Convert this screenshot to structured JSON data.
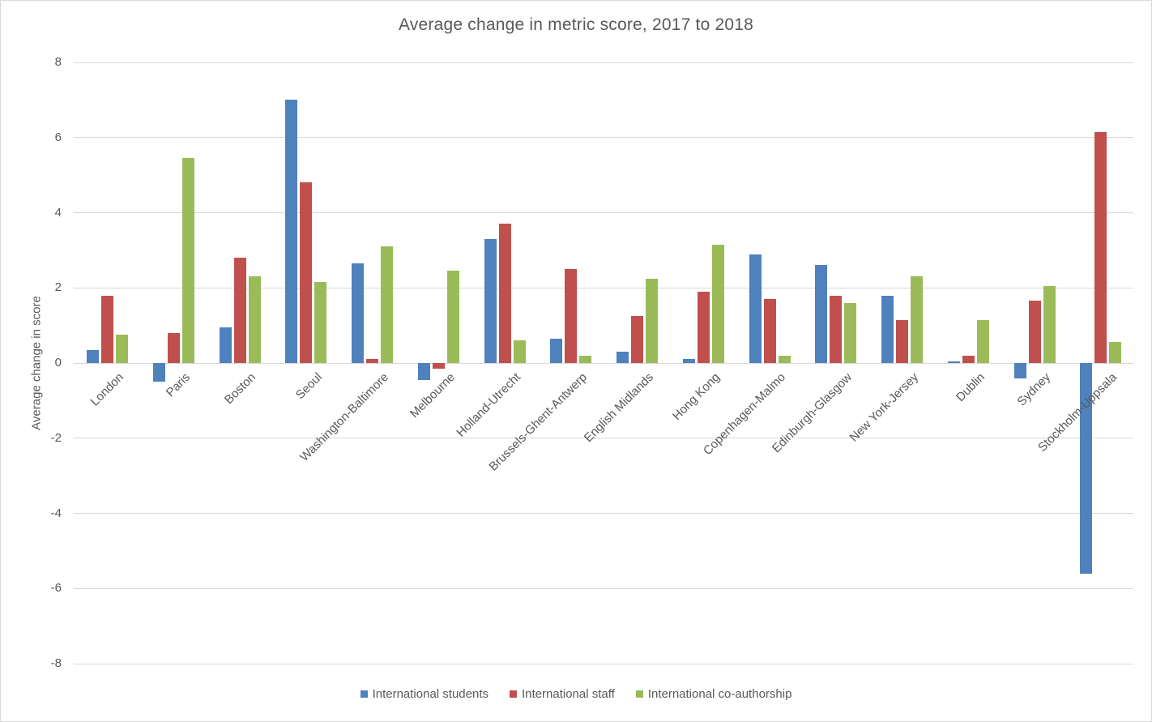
{
  "chart_data": {
    "type": "bar",
    "title": "Average change in metric score, 2017 to 2018",
    "xlabel": "",
    "ylabel": "Average change in score",
    "ylim": [
      -8,
      8
    ],
    "yticks": [
      8,
      6,
      4,
      2,
      0,
      -2,
      -4,
      -6,
      -8
    ],
    "grid": true,
    "legend_position": "bottom",
    "categories": [
      "London",
      "Paris",
      "Boston",
      "Seoul",
      "Washington-Baltimore",
      "Melbourne",
      "Holland-Utrecht",
      "Brussels-Ghent-Antwerp",
      "English Midlands",
      "Hong Kong",
      "Copenhagen-Malmo",
      "Edinburgh-Glasgow",
      "New York-Jersey",
      "Dublin",
      "Sydney",
      "Stockholm-Uppsala"
    ],
    "series": [
      {
        "name": "International students",
        "color": "#4F81BD",
        "values": [
          0.35,
          -0.5,
          0.95,
          7.0,
          2.65,
          -0.45,
          3.3,
          0.65,
          0.3,
          0.1,
          2.9,
          2.6,
          1.8,
          0.05,
          -0.4,
          -5.6
        ]
      },
      {
        "name": "International staff",
        "color": "#C0504D",
        "values": [
          1.8,
          0.8,
          2.8,
          4.8,
          0.1,
          -0.15,
          3.7,
          2.5,
          1.25,
          1.9,
          1.7,
          1.8,
          1.15,
          0.2,
          1.65,
          6.15
        ]
      },
      {
        "name": "International co-authorship",
        "color": "#9BBB59",
        "values": [
          0.75,
          5.45,
          2.3,
          2.15,
          3.1,
          2.45,
          0.6,
          0.2,
          2.25,
          3.15,
          0.2,
          1.6,
          2.3,
          1.15,
          2.05,
          0.55
        ]
      }
    ],
    "colors": {
      "grid": "#d9d9d9",
      "text": "#595959",
      "background": "#ffffff"
    }
  }
}
